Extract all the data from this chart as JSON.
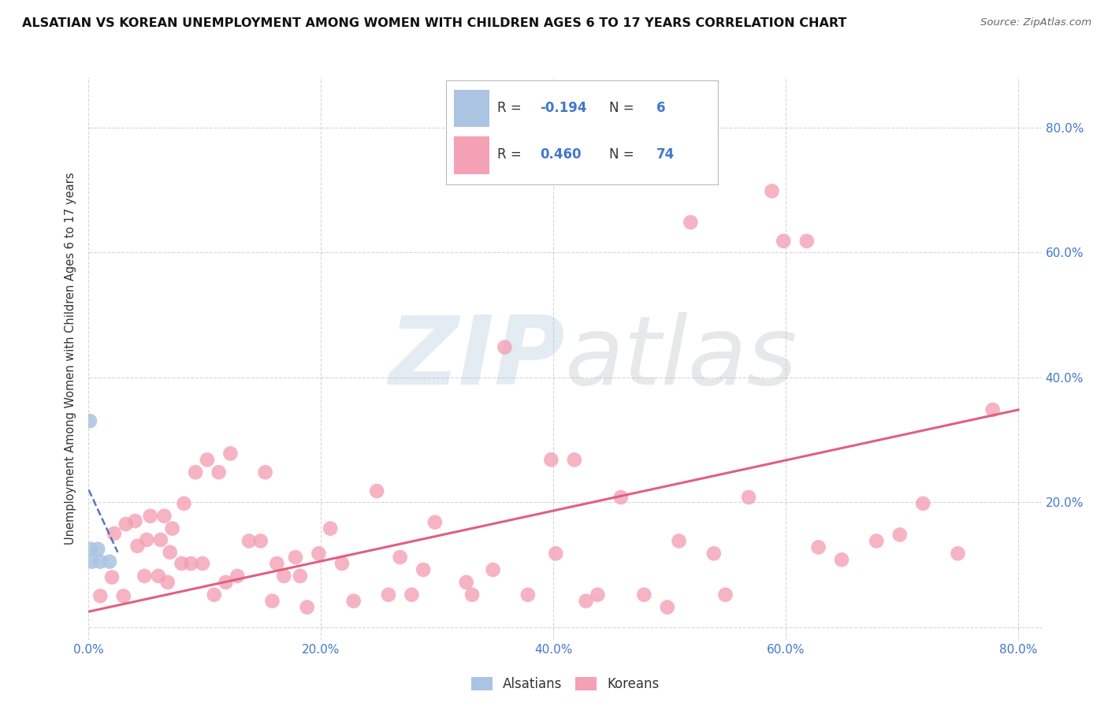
{
  "title": "ALSATIAN VS KOREAN UNEMPLOYMENT AMONG WOMEN WITH CHILDREN AGES 6 TO 17 YEARS CORRELATION CHART",
  "source": "Source: ZipAtlas.com",
  "ylabel": "Unemployment Among Women with Children Ages 6 to 17 years",
  "xlim": [
    0.0,
    0.82
  ],
  "ylim": [
    -0.02,
    0.88
  ],
  "xticks": [
    0.0,
    0.2,
    0.4,
    0.6,
    0.8
  ],
  "yticks": [
    0.0,
    0.2,
    0.4,
    0.6,
    0.8
  ],
  "xticklabels": [
    "0.0%",
    "20.0%",
    "40.0%",
    "60.0%",
    "80.0%"
  ],
  "right_yticklabels": [
    "20.0%",
    "40.0%",
    "60.0%",
    "80.0%"
  ],
  "right_yticks": [
    0.2,
    0.4,
    0.6,
    0.8
  ],
  "legend_r_alsatian": "-0.194",
  "legend_n_alsatian": "6",
  "legend_r_korean": "0.460",
  "legend_n_korean": "74",
  "alsatian_color": "#aac4e2",
  "korean_color": "#f4a0b5",
  "alsatian_line_color": "#5577bb",
  "korean_line_color": "#e06080",
  "grid_color": "#bbbbbb",
  "background_color": "#ffffff",
  "watermark_zip": "ZIP",
  "watermark_atlas": "atlas",
  "alsatian_x": [
    0.001,
    0.002,
    0.003,
    0.008,
    0.01,
    0.018
  ],
  "alsatian_y": [
    0.33,
    0.125,
    0.105,
    0.125,
    0.105,
    0.105
  ],
  "korean_x": [
    0.01,
    0.02,
    0.022,
    0.03,
    0.032,
    0.04,
    0.042,
    0.048,
    0.05,
    0.053,
    0.06,
    0.062,
    0.065,
    0.068,
    0.07,
    0.072,
    0.08,
    0.082,
    0.088,
    0.092,
    0.098,
    0.102,
    0.108,
    0.112,
    0.118,
    0.122,
    0.128,
    0.138,
    0.148,
    0.152,
    0.158,
    0.162,
    0.168,
    0.178,
    0.182,
    0.188,
    0.198,
    0.208,
    0.218,
    0.228,
    0.248,
    0.258,
    0.268,
    0.278,
    0.288,
    0.298,
    0.325,
    0.33,
    0.348,
    0.358,
    0.378,
    0.398,
    0.402,
    0.418,
    0.428,
    0.438,
    0.458,
    0.478,
    0.498,
    0.508,
    0.518,
    0.538,
    0.548,
    0.568,
    0.588,
    0.598,
    0.618,
    0.628,
    0.648,
    0.678,
    0.698,
    0.718,
    0.748,
    0.778
  ],
  "korean_y": [
    0.05,
    0.08,
    0.15,
    0.05,
    0.165,
    0.17,
    0.13,
    0.082,
    0.14,
    0.178,
    0.082,
    0.14,
    0.178,
    0.072,
    0.12,
    0.158,
    0.102,
    0.198,
    0.102,
    0.248,
    0.102,
    0.268,
    0.052,
    0.248,
    0.072,
    0.278,
    0.082,
    0.138,
    0.138,
    0.248,
    0.042,
    0.102,
    0.082,
    0.112,
    0.082,
    0.032,
    0.118,
    0.158,
    0.102,
    0.042,
    0.218,
    0.052,
    0.112,
    0.052,
    0.092,
    0.168,
    0.072,
    0.052,
    0.092,
    0.448,
    0.052,
    0.268,
    0.118,
    0.268,
    0.042,
    0.052,
    0.208,
    0.052,
    0.032,
    0.138,
    0.648,
    0.118,
    0.052,
    0.208,
    0.698,
    0.618,
    0.618,
    0.128,
    0.108,
    0.138,
    0.148,
    0.198,
    0.118,
    0.348
  ],
  "korean_fit_x": [
    0.0,
    0.8
  ],
  "korean_fit_y": [
    0.025,
    0.348
  ],
  "alsatian_fit_x": [
    0.0,
    0.025
  ],
  "alsatian_fit_y": [
    0.22,
    0.12
  ]
}
